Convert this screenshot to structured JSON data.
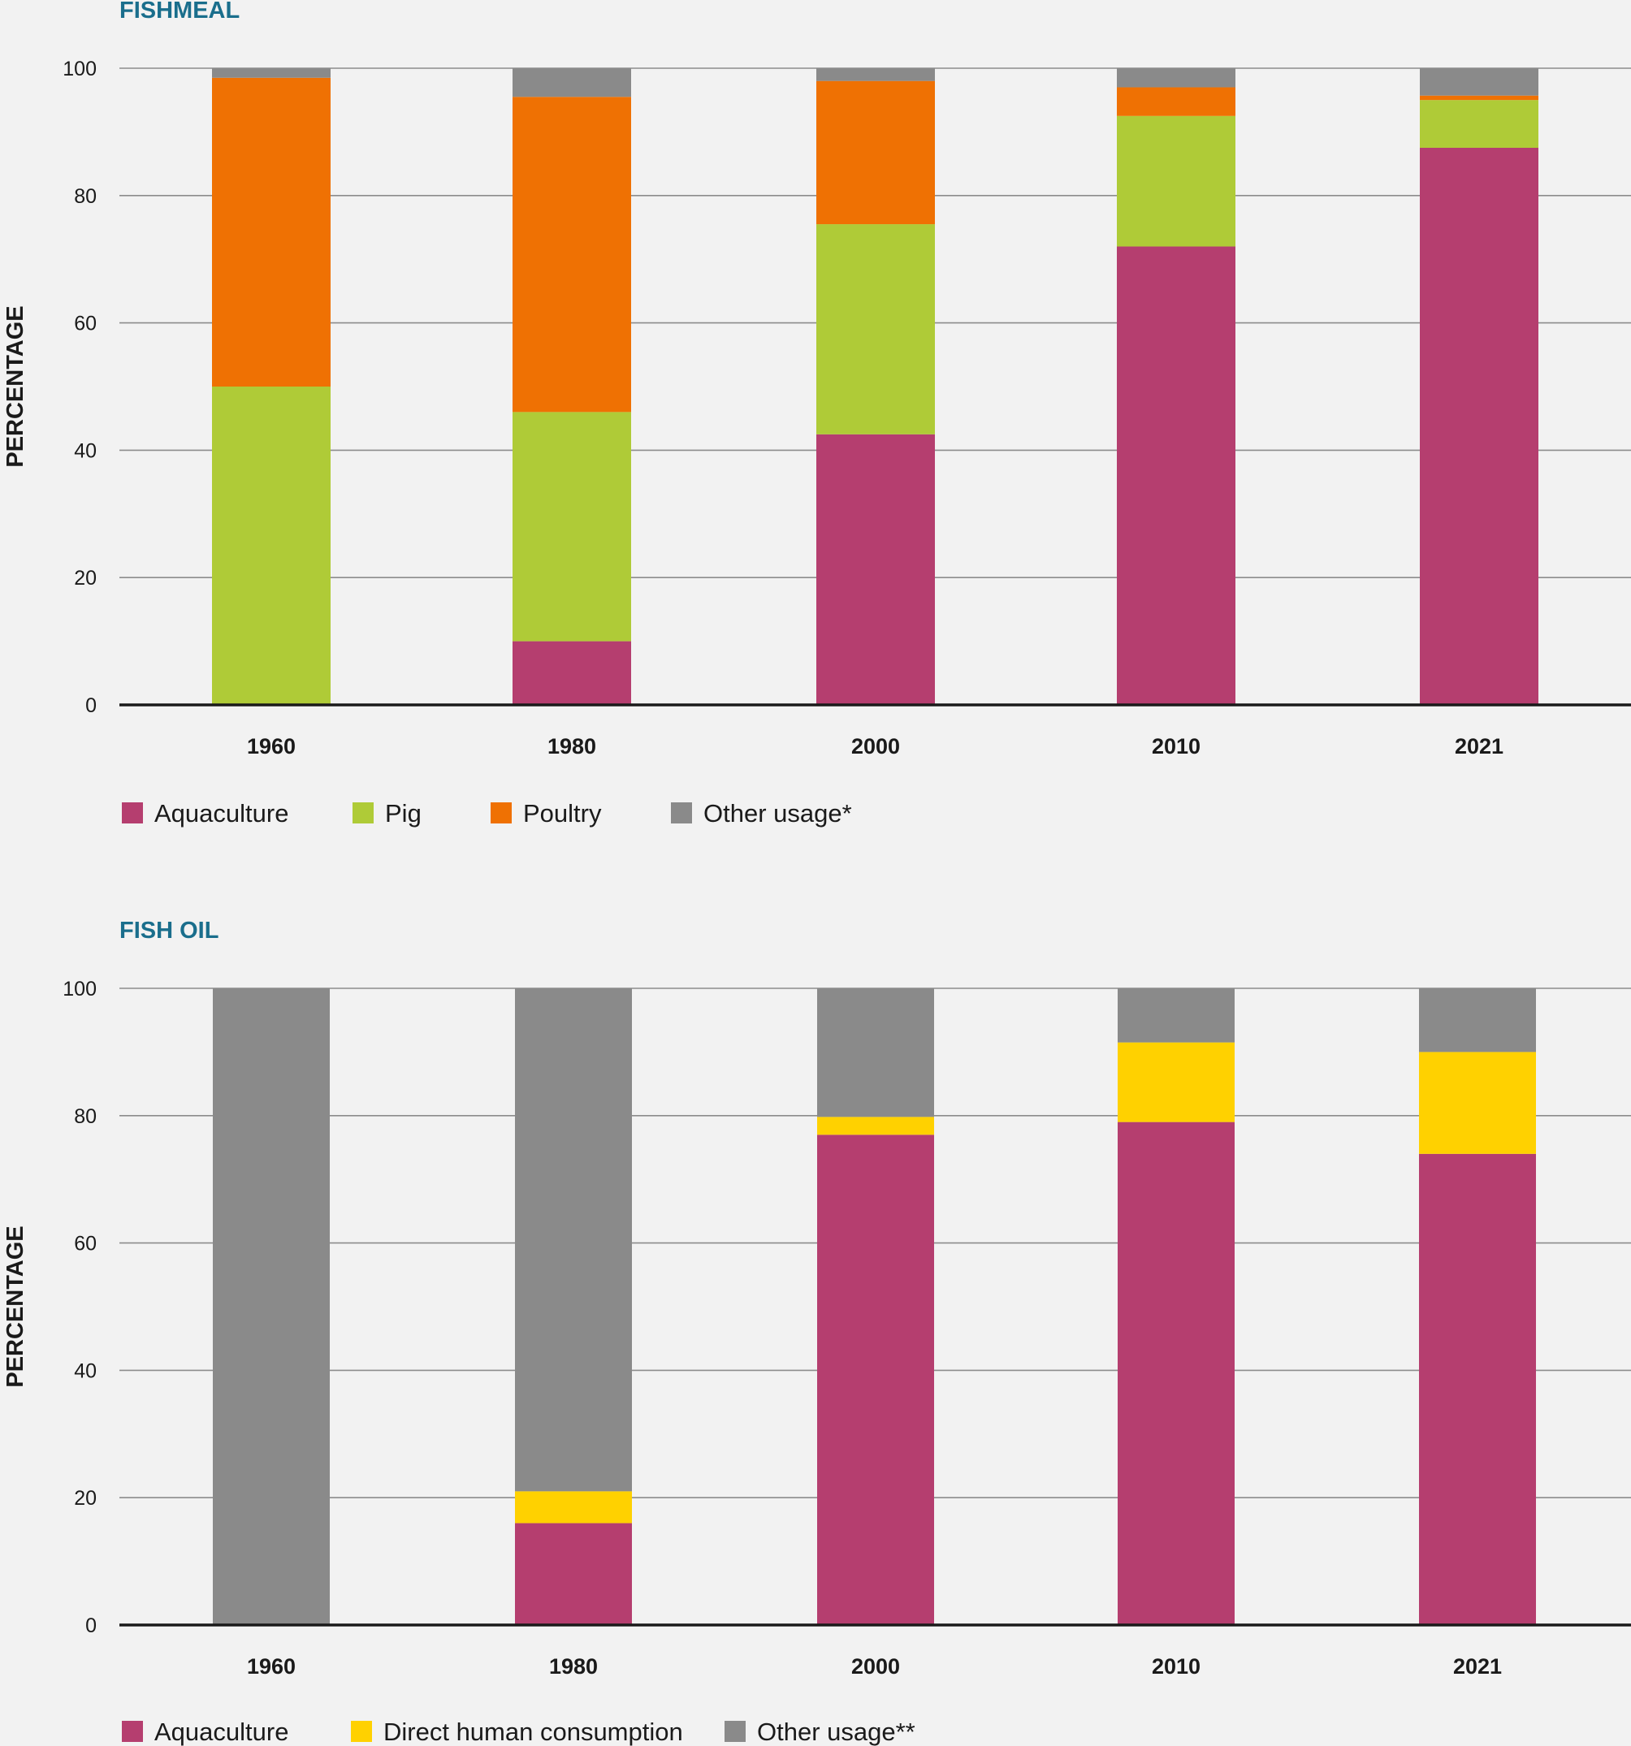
{
  "chart_data": [
    {
      "type": "bar",
      "stacked": true,
      "title": "FISHMEAL",
      "ylabel": "PERCENTAGE",
      "xlabel": "",
      "ylim": [
        0,
        100
      ],
      "yticks": [
        "0",
        "20",
        "40",
        "60",
        "80",
        "100"
      ],
      "grid": true,
      "legend_position": "bottom-left",
      "categories": [
        "1960",
        "1980",
        "2000",
        "2010",
        "2021"
      ],
      "series": [
        {
          "name": "Aquaculture",
          "color": "#b53e6f",
          "values": [
            0,
            10,
            42.5,
            72,
            87.5
          ]
        },
        {
          "name": "Pig",
          "color": "#afcb37",
          "values": [
            50,
            36,
            33,
            20.5,
            7.5
          ]
        },
        {
          "name": "Poultry",
          "color": "#ef7103",
          "values": [
            48.5,
            49.5,
            22.5,
            4.5,
            0.7
          ]
        },
        {
          "name": "Other usage*",
          "color": "#8a8a8a",
          "values": [
            1.5,
            4.5,
            2,
            3,
            4.3
          ]
        }
      ]
    },
    {
      "type": "bar",
      "stacked": true,
      "title": "FISH OIL",
      "ylabel": "PERCENTAGE",
      "xlabel": "",
      "ylim": [
        0,
        100
      ],
      "yticks": [
        "0",
        "20",
        "40",
        "60",
        "80",
        "100"
      ],
      "grid": true,
      "legend_position": "bottom-left",
      "categories": [
        "1960",
        "1980",
        "2000",
        "2010",
        "2021"
      ],
      "series": [
        {
          "name": "Aquaculture",
          "color": "#b53e6f",
          "values": [
            0,
            16,
            77,
            79,
            74
          ]
        },
        {
          "name": "Direct human consumption",
          "color": "#ffd100",
          "values": [
            0,
            5,
            2.8,
            12.5,
            16
          ]
        },
        {
          "name": "Other usage**",
          "color": "#8a8a8a",
          "values": [
            100,
            79,
            20.2,
            8.5,
            10
          ]
        }
      ]
    }
  ]
}
